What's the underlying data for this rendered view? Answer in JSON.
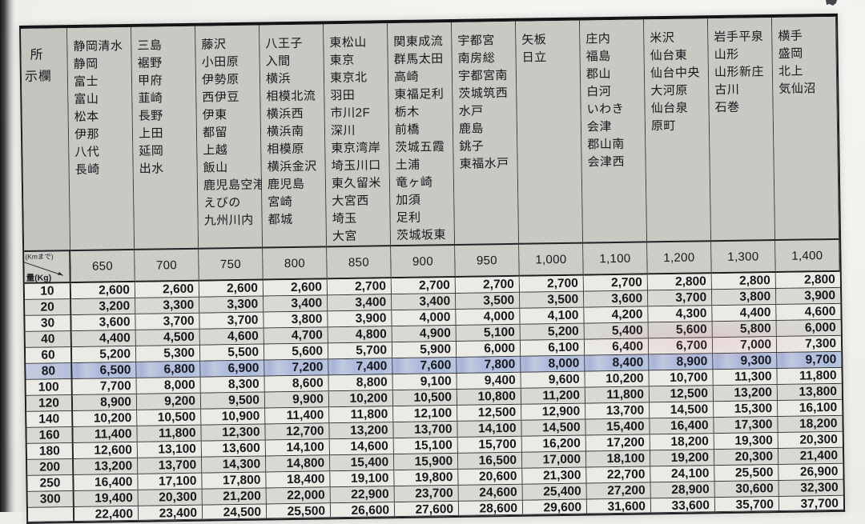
{
  "header": {
    "origin_label_line1": "所",
    "origin_label_line2": "示欄",
    "station_columns": [
      {
        "lines": [
          "静岡清水",
          "静岡",
          "富士",
          "富山",
          "松本",
          "伊那",
          "八代",
          "長崎"
        ]
      },
      {
        "lines": [
          "三島",
          "裾野",
          "甲府",
          "韮崎",
          "長野",
          "上田",
          "延岡",
          "出水"
        ]
      },
      {
        "lines": [
          "藤沢",
          "小田原",
          "伊勢原",
          "西伊豆",
          "伊東",
          "都留",
          "上越",
          "飯山",
          "鹿児島空港",
          "えびの",
          "九州川内"
        ]
      },
      {
        "lines": [
          "八王子",
          "入間",
          "横浜",
          "相模北流",
          "横浜西",
          "横浜南",
          "相模原",
          "横浜金沢",
          "鹿児島",
          "宮崎",
          "都城"
        ]
      },
      {
        "lines": [
          "東松山",
          "東京",
          "東京北",
          "羽田",
          "市川2F",
          "深川",
          "東京湾岸",
          "埼玉川口",
          "東久留米",
          "大宮西",
          "埼玉",
          "大宮"
        ]
      },
      {
        "lines": [
          "関東成流",
          "群馬太田",
          "高崎",
          "東福足利",
          "栃木",
          "前橋",
          "茨城五霞",
          "土浦",
          "竜ヶ崎",
          "加須",
          "足利",
          "茨城坂東"
        ]
      },
      {
        "lines": [
          "宇都宮",
          "南房総",
          "宇都宮南",
          "茨城筑西",
          "水戸",
          "鹿島",
          "銚子",
          "東福水戸"
        ]
      },
      {
        "lines": [
          "矢板",
          "日立"
        ]
      },
      {
        "lines": [
          "庄内",
          "福島",
          "郡山",
          "白河",
          "いわき",
          "会津",
          "郡山南",
          "会津西"
        ]
      },
      {
        "lines": [
          "米沢",
          "仙台東",
          "仙台中央",
          "大河原",
          "仙台泉",
          "原町"
        ]
      },
      {
        "lines": [
          "岩手平泉",
          "山形",
          "山形新庄",
          "古川",
          "石巻"
        ]
      },
      {
        "lines": [
          "横手",
          "盛岡",
          "北上",
          "気仙沼"
        ]
      }
    ]
  },
  "axis": {
    "distance_unit_label": "(Kmまで)",
    "weight_unit_label": "量(Kg)",
    "distances": [
      "650",
      "700",
      "750",
      "800",
      "850",
      "900",
      "950",
      "1,000",
      "1,100",
      "1,200",
      "1,300",
      "1,400"
    ]
  },
  "rate_table": {
    "weights": [
      "10",
      "20",
      "30",
      "40",
      "60",
      "80",
      "100",
      "120",
      "140",
      "160",
      "180",
      "200",
      "250",
      "300"
    ],
    "rows": [
      [
        "2,600",
        "2,600",
        "2,600",
        "2,600",
        "2,700",
        "2,700",
        "2,700",
        "2,700",
        "2,700",
        "2,800",
        "2,800",
        "2,800"
      ],
      [
        "3,200",
        "3,300",
        "3,300",
        "3,400",
        "3,400",
        "3,400",
        "3,500",
        "3,500",
        "3,600",
        "3,700",
        "3,800",
        "3,900"
      ],
      [
        "3,600",
        "3,700",
        "3,700",
        "3,800",
        "3,900",
        "4,000",
        "4,000",
        "4,100",
        "4,200",
        "4,300",
        "4,400",
        "4,600"
      ],
      [
        "4,400",
        "4,500",
        "4,600",
        "4,700",
        "4,800",
        "4,900",
        "5,100",
        "5,200",
        "5,400",
        "5,600",
        "5,800",
        "6,000"
      ],
      [
        "5,200",
        "5,300",
        "5,500",
        "5,600",
        "5,700",
        "5,900",
        "6,000",
        "6,100",
        "6,400",
        "6,700",
        "7,000",
        "7,300"
      ],
      [
        "6,500",
        "6,800",
        "6,900",
        "7,200",
        "7,400",
        "7,600",
        "7,800",
        "8,000",
        "8,400",
        "8,900",
        "9,300",
        "9,700"
      ],
      [
        "7,700",
        "8,000",
        "8,300",
        "8,600",
        "8,800",
        "9,100",
        "9,400",
        "9,600",
        "10,200",
        "10,700",
        "11,300",
        "11,800"
      ],
      [
        "8,900",
        "9,200",
        "9,500",
        "9,900",
        "10,200",
        "10,500",
        "10,800",
        "11,200",
        "11,800",
        "12,500",
        "13,200",
        "13,800"
      ],
      [
        "10,200",
        "10,500",
        "10,900",
        "11,400",
        "11,800",
        "12,100",
        "12,500",
        "12,900",
        "13,700",
        "14,500",
        "15,300",
        "16,100"
      ],
      [
        "11,400",
        "11,800",
        "12,300",
        "12,700",
        "13,200",
        "13,700",
        "14,100",
        "14,500",
        "15,400",
        "16,400",
        "17,300",
        "18,200"
      ],
      [
        "12,600",
        "13,100",
        "13,600",
        "14,100",
        "14,600",
        "15,100",
        "15,700",
        "16,200",
        "17,200",
        "18,200",
        "19,300",
        "20,300"
      ],
      [
        "13,200",
        "13,700",
        "14,300",
        "14,800",
        "15,400",
        "15,900",
        "16,500",
        "17,000",
        "18,100",
        "19,200",
        "20,300",
        "21,400"
      ],
      [
        "16,400",
        "17,100",
        "17,800",
        "18,400",
        "19,100",
        "19,800",
        "20,600",
        "21,300",
        "22,700",
        "24,100",
        "25,500",
        "26,900"
      ],
      [
        "19,400",
        "20,300",
        "21,200",
        "22,000",
        "22,900",
        "23,700",
        "24,600",
        "25,400",
        "27,200",
        "28,900",
        "30,600",
        "32,300"
      ]
    ],
    "clipped_row": [
      "22,400",
      "23,400",
      "24,500",
      "25,500",
      "26,600",
      "27,600",
      "28,600",
      "29,600",
      "31,600",
      "33,600",
      "35,700",
      "37,700"
    ]
  },
  "highlight": {
    "row_weight": "80",
    "color": "#aebadb"
  },
  "colors": {
    "header_gray": "#c7c9c3",
    "row_gray": "#d8d9d3",
    "row_white": "#ebebe6",
    "grid_line": "#3a3b40",
    "binding_dark": "#17181c"
  }
}
